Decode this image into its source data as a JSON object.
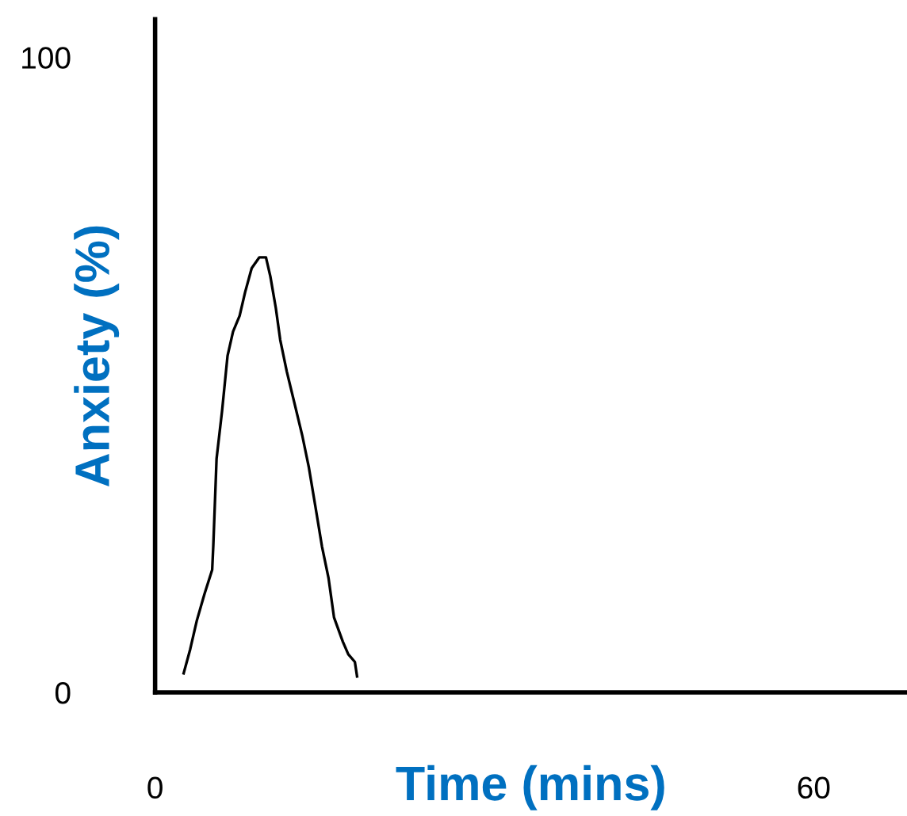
{
  "chart_data": {
    "type": "line",
    "xlabel": "Time (mins)",
    "ylabel": "Anxiety (%)",
    "xlim": [
      0,
      68.5
    ],
    "ylim": [
      0,
      106
    ],
    "xticks": [
      0,
      60
    ],
    "yticks": [
      0,
      100
    ],
    "grid": false,
    "legend": false,
    "marker": "none",
    "line_style": "solid",
    "series": [
      {
        "color": "#000000",
        "x": [
          2.6,
          3.2,
          3.8,
          4.5,
          5.2,
          5.3,
          5.6,
          6.1,
          6.6,
          7.1,
          7.7,
          8.2,
          8.8,
          9.5,
          10.1,
          10.5,
          11.0,
          11.4,
          12.0,
          12.7,
          13.4,
          14.0,
          14.6,
          15.2,
          15.8,
          16.3,
          17.1,
          17.6,
          18.2,
          18.4
        ],
        "values": [
          3.0,
          6.8,
          11.3,
          15.5,
          19.3,
          23,
          36.8,
          44.3,
          53,
          56.8,
          59.3,
          63,
          66.8,
          68.5,
          68.5,
          65.5,
          60.5,
          55.5,
          50.5,
          45.5,
          40.5,
          35.5,
          29.3,
          23,
          18,
          11.8,
          8,
          6,
          4.8,
          2.5
        ]
      }
    ]
  }
}
